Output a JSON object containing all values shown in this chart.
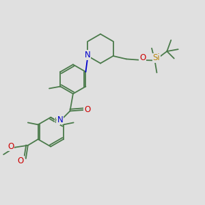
{
  "bg_color": "#e0e0e0",
  "bond_color": "#4a7a4a",
  "N_color": "#0000cc",
  "O_color": "#cc0000",
  "Si_color": "#b8860b",
  "line_width": 1.3,
  "font_size": 8.5,
  "fig_w": 3.0,
  "fig_h": 3.0,
  "dpi": 100,
  "xlim": [
    0,
    10
  ],
  "ylim": [
    0,
    10
  ]
}
